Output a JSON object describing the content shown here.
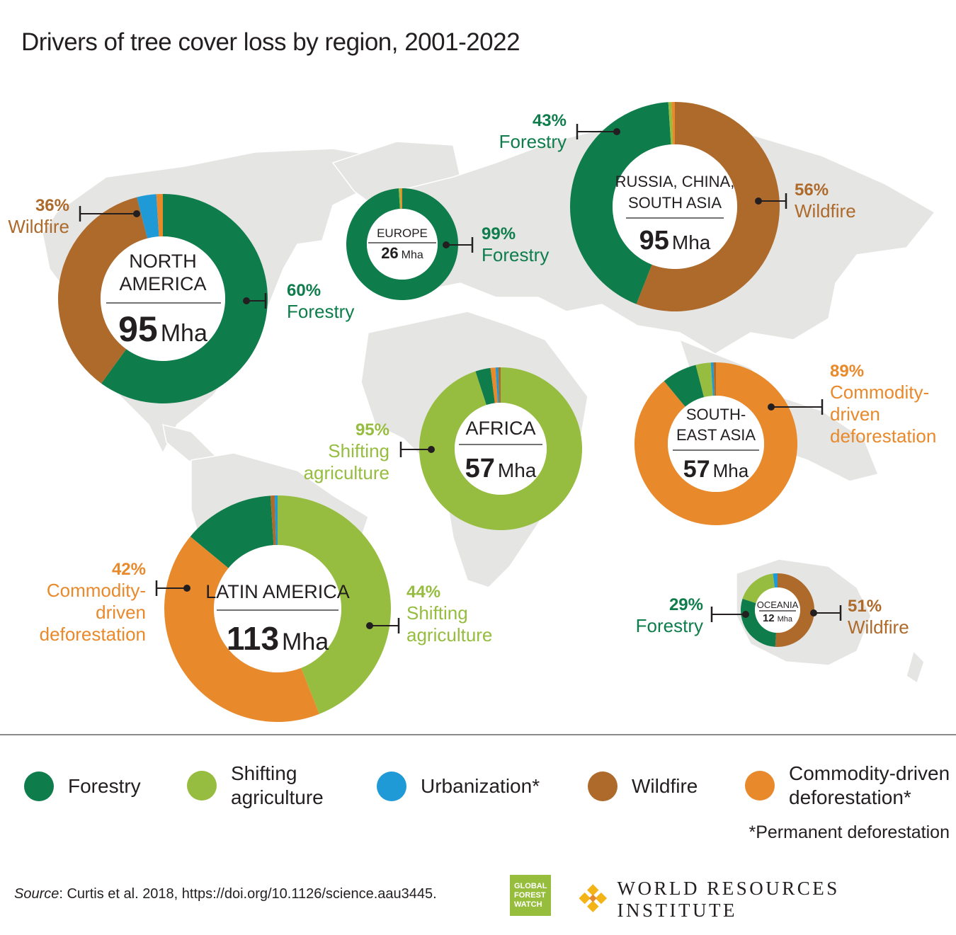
{
  "title": "Drivers of tree cover loss by region, 2001-2022",
  "colors": {
    "forestry": "#0f7d4b",
    "shifting_agriculture": "#96bd3f",
    "urbanization": "#1f9ad6",
    "wildfire": "#ad6a2b",
    "commodity": "#e8892c",
    "map": "#e5e5e4",
    "callout": "#231f20"
  },
  "legend": [
    {
      "key": "forestry",
      "label": "Forestry",
      "icon": "forestry-dot"
    },
    {
      "key": "shifting_agriculture",
      "label": "Shifting\nagriculture",
      "icon": "shifting-agriculture-dot"
    },
    {
      "key": "urbanization",
      "label": "Urbanization*",
      "icon": "urbanization-dot"
    },
    {
      "key": "wildfire",
      "label": "Wildfire",
      "icon": "wildfire-dot"
    },
    {
      "key": "commodity",
      "label": "Commodity-driven\ndeforestation*",
      "icon": "commodity-dot"
    }
  ],
  "footnote": "*Permanent deforestation",
  "source": {
    "label": "Source",
    "text": ": Curtis et al. 2018, https://doi.org/10.1126/science.aau3445."
  },
  "logos": {
    "gfw": [
      "GLOBAL",
      "FOREST",
      "WATCH"
    ],
    "wri": "WORLD RESOURCES INSTITUTE"
  },
  "chart_data": [
    {
      "type": "pie",
      "region": "NORTH\nAMERICA",
      "total": "95",
      "unit": "Mha",
      "slices": [
        {
          "key": "forestry",
          "value": 60
        },
        {
          "key": "wildfire",
          "value": 36
        },
        {
          "key": "urbanization",
          "value": 3
        },
        {
          "key": "commodity",
          "value": 1
        }
      ],
      "annotations": [
        {
          "pct": "60%",
          "label": "Forestry",
          "key": "forestry"
        },
        {
          "pct": "36%",
          "label": "Wildfire",
          "key": "wildfire"
        }
      ]
    },
    {
      "type": "pie",
      "region": "EUROPE",
      "total": "26",
      "unit": "Mha",
      "slices": [
        {
          "key": "forestry",
          "value": 99
        },
        {
          "key": "shifting_agriculture",
          "value": 0.5
        },
        {
          "key": "commodity",
          "value": 0.5
        }
      ],
      "annotations": [
        {
          "pct": "99%",
          "label": "Forestry",
          "key": "forestry"
        }
      ]
    },
    {
      "type": "pie",
      "region": "RUSSIA, CHINA,\nSOUTH ASIA",
      "total": "95",
      "unit": "Mha",
      "slices": [
        {
          "key": "wildfire",
          "value": 56
        },
        {
          "key": "forestry",
          "value": 43
        },
        {
          "key": "shifting_agriculture",
          "value": 0.5
        },
        {
          "key": "commodity",
          "value": 0.5
        }
      ],
      "annotations": [
        {
          "pct": "43%",
          "label": "Forestry",
          "key": "forestry"
        },
        {
          "pct": "56%",
          "label": "Wildfire",
          "key": "wildfire"
        }
      ]
    },
    {
      "type": "pie",
      "region": "AFRICA",
      "total": "57",
      "unit": "Mha",
      "slices": [
        {
          "key": "shifting_agriculture",
          "value": 95
        },
        {
          "key": "forestry",
          "value": 3
        },
        {
          "key": "commodity",
          "value": 1
        },
        {
          "key": "urbanization",
          "value": 0.5
        },
        {
          "key": "wildfire",
          "value": 0.5
        }
      ],
      "annotations": [
        {
          "pct": "95%",
          "label": "Shifting\nagriculture",
          "key": "shifting_agriculture"
        }
      ]
    },
    {
      "type": "pie",
      "region": "SOUTH-\nEAST ASIA",
      "total": "57",
      "unit": "Mha",
      "slices": [
        {
          "key": "commodity",
          "value": 89
        },
        {
          "key": "forestry",
          "value": 7
        },
        {
          "key": "shifting_agriculture",
          "value": 3
        },
        {
          "key": "urbanization",
          "value": 0.5
        },
        {
          "key": "wildfire",
          "value": 0.5
        }
      ],
      "annotations": [
        {
          "pct": "89%",
          "label": "Commodity-\ndriven\ndeforestation",
          "key": "commodity"
        }
      ]
    },
    {
      "type": "pie",
      "region": "LATIN AMERICA",
      "total": "113",
      "unit": "Mha",
      "slices": [
        {
          "key": "shifting_agriculture",
          "value": 44
        },
        {
          "key": "commodity",
          "value": 42
        },
        {
          "key": "forestry",
          "value": 13
        },
        {
          "key": "wildfire",
          "value": 0.6
        },
        {
          "key": "urbanization",
          "value": 0.4
        }
      ],
      "annotations": [
        {
          "pct": "42%",
          "label": "Commodity-\ndriven\ndeforestation",
          "key": "commodity"
        },
        {
          "pct": "44%",
          "label": "Shifting\nagriculture",
          "key": "shifting_agriculture"
        }
      ]
    },
    {
      "type": "pie",
      "region": "OCEANIA",
      "total": "12",
      "unit": "Mha",
      "slices": [
        {
          "key": "wildfire",
          "value": 51
        },
        {
          "key": "forestry",
          "value": 29
        },
        {
          "key": "shifting_agriculture",
          "value": 18
        },
        {
          "key": "urbanization",
          "value": 2
        }
      ],
      "annotations": [
        {
          "pct": "29%",
          "label": "Forestry",
          "key": "forestry"
        },
        {
          "pct": "51%",
          "label": "Wildfire",
          "key": "wildfire"
        }
      ]
    }
  ]
}
